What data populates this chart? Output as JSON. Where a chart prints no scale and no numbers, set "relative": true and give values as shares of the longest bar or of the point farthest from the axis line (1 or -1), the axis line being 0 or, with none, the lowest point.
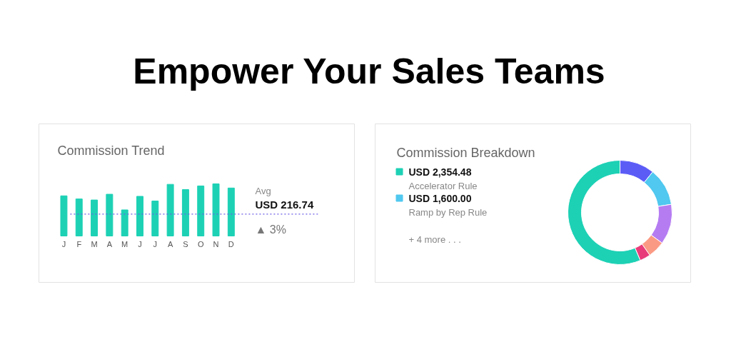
{
  "chart_data": [
    {
      "type": "bar",
      "title": "Commission Trend",
      "relative": true,
      "categories": [
        "J",
        "F",
        "M",
        "A",
        "M",
        "J",
        "J",
        "A",
        "S",
        "O",
        "N",
        "D"
      ],
      "values": [
        0.77,
        0.71,
        0.69,
        0.8,
        0.5,
        0.76,
        0.67,
        0.99,
        0.89,
        0.96,
        1.0,
        0.92
      ],
      "color": "#1dd1b5",
      "ref_lines": [
        {
          "axis": "y",
          "value": 0.42,
          "label": "Avg",
          "color": "#6b5ce7",
          "line_style": "dotted"
        }
      ],
      "annotations": [
        "Empower Your Sales Teams",
        "USD 216.74",
        "▲ 3%"
      ]
    },
    {
      "type": "donut",
      "title": "Commission Breakdown",
      "categories": [
        "Accelerator Rule",
        null,
        "Ramp by Rep Rule",
        null,
        null,
        null
      ],
      "values": [
        56.4,
        10.8,
        11.7,
        12.5,
        5.3,
        3.3
      ],
      "colors": [
        "#1dd1b5",
        "#5b5cf6",
        "#50c8ef",
        "#b57cf2",
        "#fb9a84",
        "#e83c7a"
      ],
      "value_labels": [
        "USD 2,354.48",
        null,
        "USD 1,600.00",
        null,
        null,
        null
      ],
      "legend": "left",
      "annotations": [
        "+ 4 more . . ."
      ]
    }
  ]
}
